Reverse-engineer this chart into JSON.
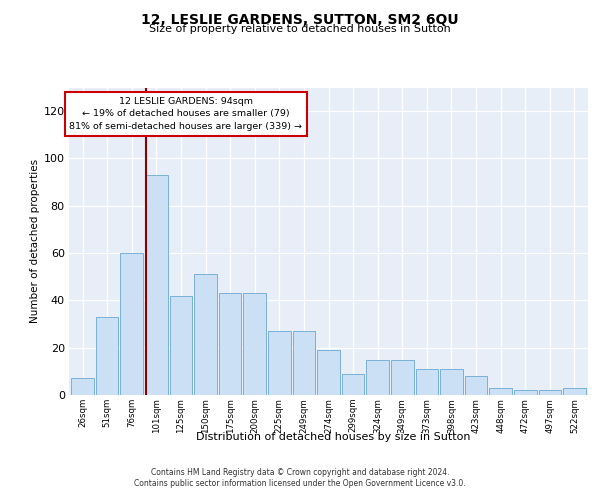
{
  "title": "12, LESLIE GARDENS, SUTTON, SM2 6QU",
  "subtitle": "Size of property relative to detached houses in Sutton",
  "xlabel": "Distribution of detached houses by size in Sutton",
  "ylabel": "Number of detached properties",
  "bar_color": "#cce0f5",
  "bar_edge_color": "#7ab0d8",
  "categories": [
    "26sqm",
    "51sqm",
    "76sqm",
    "101sqm",
    "125sqm",
    "150sqm",
    "175sqm",
    "200sqm",
    "225sqm",
    "249sqm",
    "274sqm",
    "299sqm",
    "324sqm",
    "349sqm",
    "373sqm",
    "398sqm",
    "423sqm",
    "448sqm",
    "472sqm",
    "497sqm",
    "522sqm"
  ],
  "values": [
    7,
    33,
    60,
    93,
    42,
    51,
    43,
    43,
    27,
    27,
    19,
    9,
    15,
    15,
    11,
    11,
    8,
    3,
    2,
    2,
    3
  ],
  "ylim": [
    0,
    130
  ],
  "yticks": [
    0,
    20,
    40,
    60,
    80,
    100,
    120
  ],
  "vline_index": 2.57,
  "vline_color": "#8b0000",
  "annotation_title": "12 LESLIE GARDENS: 94sqm",
  "annotation_line2": "← 19% of detached houses are smaller (79)",
  "annotation_line3": "81% of semi-detached houses are larger (339) →",
  "annotation_box_facecolor": "#ffffff",
  "annotation_box_edgecolor": "#cc0000",
  "plot_bg_color": "#e8eef8",
  "footer1": "Contains HM Land Registry data © Crown copyright and database right 2024.",
  "footer2": "Contains public sector information licensed under the Open Government Licence v3.0."
}
